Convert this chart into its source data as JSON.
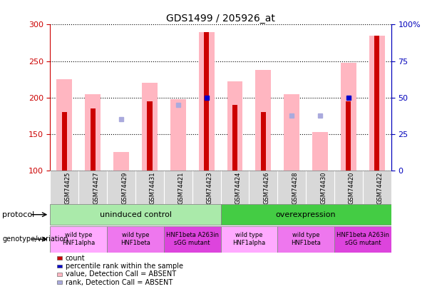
{
  "title": "GDS1499 / 205926_at",
  "samples": [
    "GSM74425",
    "GSM74427",
    "GSM74429",
    "GSM74431",
    "GSM74421",
    "GSM74423",
    "GSM74424",
    "GSM74426",
    "GSM74428",
    "GSM74430",
    "GSM74420",
    "GSM74422"
  ],
  "ylim": [
    100,
    300
  ],
  "yticks": [
    100,
    150,
    200,
    250,
    300
  ],
  "right_yticks_vals": [
    0,
    25,
    50,
    75,
    100
  ],
  "right_yticks_labels": [
    "0",
    "25",
    "50",
    "75",
    "100%"
  ],
  "bar_pink_values": [
    225,
    205,
    125,
    220,
    198,
    290,
    222,
    238,
    205,
    153,
    248,
    285
  ],
  "bar_red_values": [
    180,
    185,
    0,
    195,
    0,
    290,
    190,
    180,
    0,
    0,
    195,
    285
  ],
  "rank_blue_values": [
    null,
    null,
    170,
    null,
    190,
    null,
    null,
    null,
    175,
    175,
    null,
    null
  ],
  "percentile_blue_values": [
    null,
    null,
    null,
    null,
    null,
    200,
    null,
    null,
    null,
    null,
    200,
    null
  ],
  "protocol_groups": [
    {
      "label": "uninduced control",
      "start": 0,
      "end": 6,
      "color": "#aaeaaa"
    },
    {
      "label": "overexpression",
      "start": 6,
      "end": 12,
      "color": "#44cc44"
    }
  ],
  "genotype_groups": [
    {
      "label": "wild type\nHNF1alpha",
      "start": 0,
      "end": 2,
      "color": "#ffaaff"
    },
    {
      "label": "wild type\nHNF1beta",
      "start": 2,
      "end": 4,
      "color": "#ee77ee"
    },
    {
      "label": "HNF1beta A263in\nsGG mutant",
      "start": 4,
      "end": 6,
      "color": "#dd44dd"
    },
    {
      "label": "wild type\nHNF1alpha",
      "start": 6,
      "end": 8,
      "color": "#ffaaff"
    },
    {
      "label": "wild type\nHNF1beta",
      "start": 8,
      "end": 10,
      "color": "#ee77ee"
    },
    {
      "label": "HNF1beta A263in\nsGG mutant",
      "start": 10,
      "end": 12,
      "color": "#dd44dd"
    }
  ],
  "legend_items": [
    {
      "label": "count",
      "color": "#cc0000"
    },
    {
      "label": "percentile rank within the sample",
      "color": "#0000cc"
    },
    {
      "label": "value, Detection Call = ABSENT",
      "color": "#ffb6c1"
    },
    {
      "label": "rank, Detection Call = ABSENT",
      "color": "#aaaadd"
    }
  ],
  "axis_color_left": "#cc0000",
  "axis_color_right": "#0000bb"
}
